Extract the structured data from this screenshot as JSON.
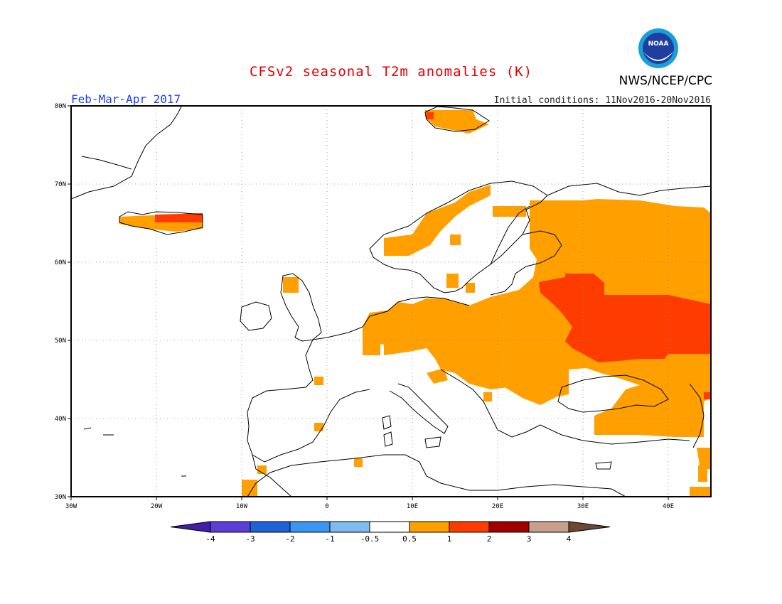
{
  "header": {
    "title": "CFSv2 seasonal T2m anomalies (K)",
    "agency": "NWS/NCEP/CPC",
    "period": "Feb-Mar-Apr 2017",
    "initial_conditions": "Initial conditions: 11Nov2016-20Nov2016",
    "logo_text": "NOAA"
  },
  "map": {
    "region": "Europe",
    "lon_range": [
      -30,
      45
    ],
    "lat_range": [
      30,
      80
    ],
    "lon_ticks": [
      "30W",
      "20W",
      "10W",
      "0",
      "10E",
      "20E",
      "30E",
      "40E"
    ],
    "lat_ticks": [
      "80N",
      "70N",
      "60N",
      "50N",
      "40N",
      "30N"
    ],
    "anomaly_areas": [
      {
        "name": "Svalbard",
        "level": "0.5-1"
      },
      {
        "name": "Iceland",
        "level": "0.5-1"
      },
      {
        "name": "Iceland north coast",
        "level": "1-2"
      },
      {
        "name": "Norway coast",
        "level": "0.5-1"
      },
      {
        "name": "Central and Eastern Europe",
        "level": "0.5-1"
      },
      {
        "name": "Western Russia",
        "level": "0.5-1"
      },
      {
        "name": "Belarus / Ukraine / Russia",
        "level": "1-2"
      },
      {
        "name": "Caucasus / Turkey east",
        "level": "0.5-1"
      }
    ]
  },
  "colorbar": {
    "labels": [
      "-4",
      "-3",
      "-2",
      "-1",
      "-0.5",
      "0.5",
      "1",
      "2",
      "3",
      "4"
    ],
    "colors": [
      "#3c1fa6",
      "#5a3ed6",
      "#1e64d8",
      "#3a96f0",
      "#7ebcf0",
      "#ffffff",
      "#ffa000",
      "#ff3c00",
      "#a00000",
      "#c8a08c",
      "#6e4632"
    ]
  }
}
